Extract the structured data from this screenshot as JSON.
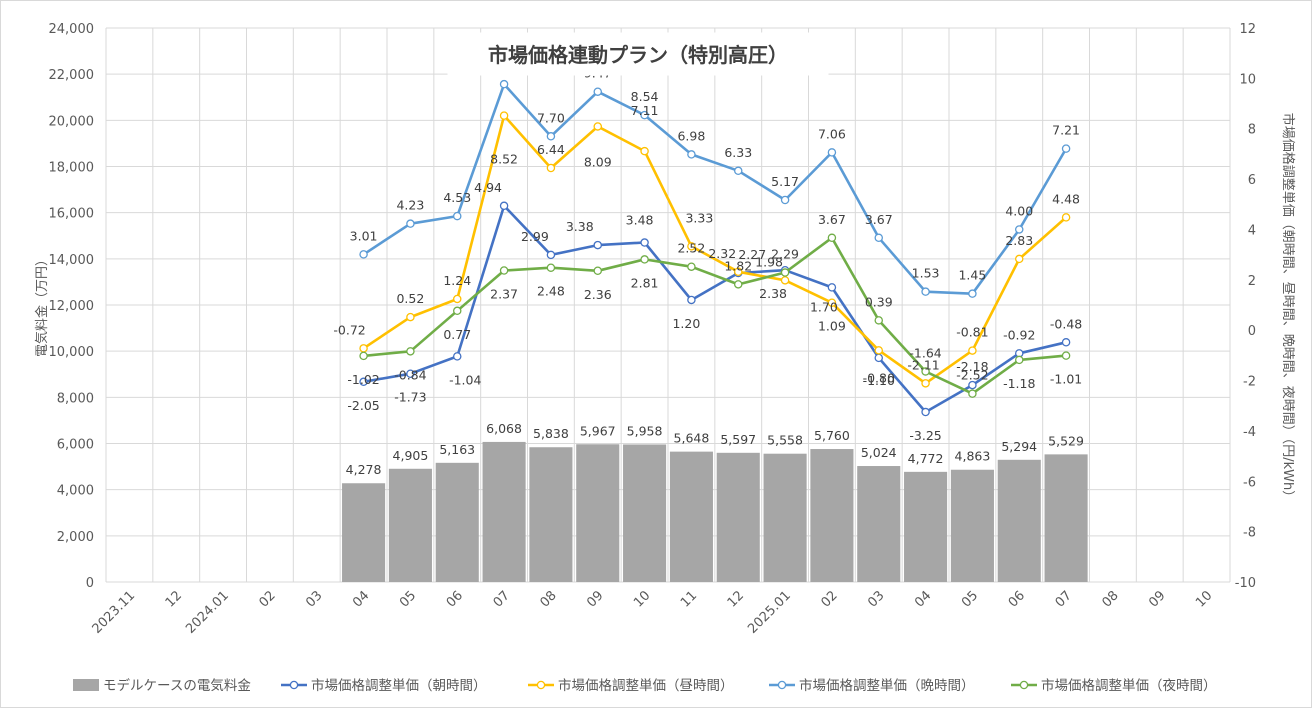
{
  "chart_data": {
    "type": "bar+line",
    "title": "市場価格連動プラン（特別高圧）",
    "ylabel_left": "電気料金（万円）",
    "ylabel_right": "市場価格調整単価（朝時間、昼時間、晩時間、夜時間）（円/kWh）",
    "categories": [
      "2023.11",
      "12",
      "2024.01",
      "02",
      "03",
      "04",
      "05",
      "06",
      "07",
      "08",
      "09",
      "10",
      "11",
      "12",
      "2025.01",
      "02",
      "03",
      "04",
      "05",
      "06",
      "07",
      "08",
      "09",
      "10"
    ],
    "ylim_left": [
      0,
      24000
    ],
    "ylim_right": [
      -10,
      12
    ],
    "yticks_left": [
      "0",
      "2,000",
      "4,000",
      "6,000",
      "8,000",
      "10,000",
      "12,000",
      "14,000",
      "16,000",
      "18,000",
      "20,000",
      "22,000",
      "24,000"
    ],
    "yticks_right": [
      "-10",
      "-8",
      "-6",
      "-4",
      "-2",
      "0",
      "2",
      "4",
      "6",
      "8",
      "10",
      "12"
    ],
    "bars": {
      "name": "モデルケースの電気料金",
      "color": "#a6a6a6",
      "values": [
        null,
        null,
        null,
        null,
        null,
        4278,
        4905,
        5163,
        6068,
        5838,
        5967,
        5958,
        5648,
        5597,
        5558,
        5760,
        5024,
        4772,
        4863,
        5294,
        5529,
        null,
        null,
        null
      ],
      "labels": [
        null,
        null,
        null,
        null,
        null,
        "4,278",
        "4,905",
        "5,163",
        "6,068",
        "5,838",
        "5,967",
        "5,958",
        "5,648",
        "5,597",
        "5,558",
        "5,760",
        "5,024",
        "4,772",
        "4,863",
        "5,294",
        "5,529",
        null,
        null,
        null
      ]
    },
    "series": [
      {
        "name": "市場価格調整単価（朝時間）",
        "color": "#4472c4",
        "values": [
          null,
          null,
          null,
          null,
          null,
          -2.05,
          -1.73,
          -1.04,
          4.94,
          2.99,
          3.38,
          3.48,
          1.2,
          2.27,
          2.38,
          1.7,
          -1.1,
          -3.25,
          -2.18,
          -0.92,
          -0.48,
          null,
          null,
          null
        ]
      },
      {
        "name": "市場価格調整単価（昼時間）",
        "color": "#ffc000",
        "values": [
          null,
          null,
          null,
          null,
          null,
          -0.72,
          0.52,
          1.24,
          8.52,
          6.44,
          8.09,
          7.11,
          3.33,
          2.32,
          1.98,
          1.09,
          -0.8,
          -2.11,
          -0.81,
          2.83,
          4.48,
          null,
          null,
          null
        ]
      },
      {
        "name": "市場価格調整単価（晩時間）",
        "color": "#5b9bd5",
        "values": [
          null,
          null,
          null,
          null,
          null,
          3.01,
          4.23,
          4.53,
          9.77,
          7.7,
          9.47,
          8.54,
          6.98,
          6.33,
          5.17,
          7.06,
          3.67,
          1.53,
          1.45,
          4.0,
          7.21,
          null,
          null,
          null
        ]
      },
      {
        "name": "市場価格調整単価（夜時間）",
        "color": "#70ad47",
        "values": [
          null,
          null,
          null,
          null,
          null,
          -1.02,
          -0.84,
          0.77,
          2.37,
          2.48,
          2.36,
          2.81,
          2.52,
          1.82,
          2.29,
          3.67,
          0.39,
          -1.64,
          -2.52,
          -1.18,
          -1.01,
          null,
          null,
          null
        ]
      }
    ],
    "legend_position": "bottom",
    "grid": true
  }
}
